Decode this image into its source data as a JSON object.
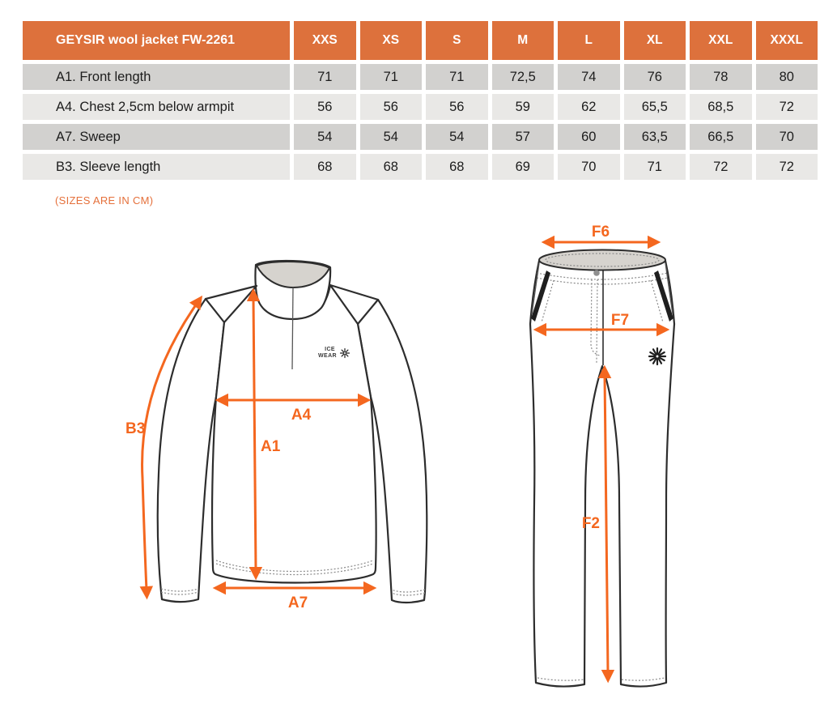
{
  "table": {
    "product_label": "GEYSIR wool jacket FW-2261",
    "size_headers": [
      "XXS",
      "XS",
      "S",
      "M",
      "L",
      "XL",
      "XXL",
      "XXXL"
    ],
    "rows": [
      {
        "label": "A1. Front length",
        "values": [
          "71",
          "71",
          "71",
          "72,5",
          "74",
          "76",
          "78",
          "80"
        ]
      },
      {
        "label": "A4. Chest 2,5cm below armpit",
        "values": [
          "56",
          "56",
          "56",
          "59",
          "62",
          "65,5",
          "68,5",
          "72"
        ]
      },
      {
        "label": "A7. Sweep",
        "values": [
          "54",
          "54",
          "54",
          "57",
          "60",
          "63,5",
          "66,5",
          "70"
        ]
      },
      {
        "label": "B3. Sleeve length",
        "values": [
          "68",
          "68",
          "68",
          "69",
          "70",
          "71",
          "72",
          "72"
        ]
      }
    ]
  },
  "note": "(SIZES ARE IN CM)",
  "jacket": {
    "brand_line1": "ICE",
    "brand_line2": "WEAR",
    "measurements": {
      "b3": "B3",
      "a4": "A4",
      "a1": "A1",
      "a7": "A7"
    }
  },
  "pants": {
    "measurements": {
      "f6": "F6",
      "f7": "F7",
      "f2": "F2"
    }
  },
  "colors": {
    "header_orange": "#dd713c",
    "arrow_orange": "#f4671f",
    "note_orange": "#e5703b",
    "row_dark": "#d2d1cf",
    "row_light": "#e9e8e6",
    "collar_gray": "#d6d3ce"
  }
}
